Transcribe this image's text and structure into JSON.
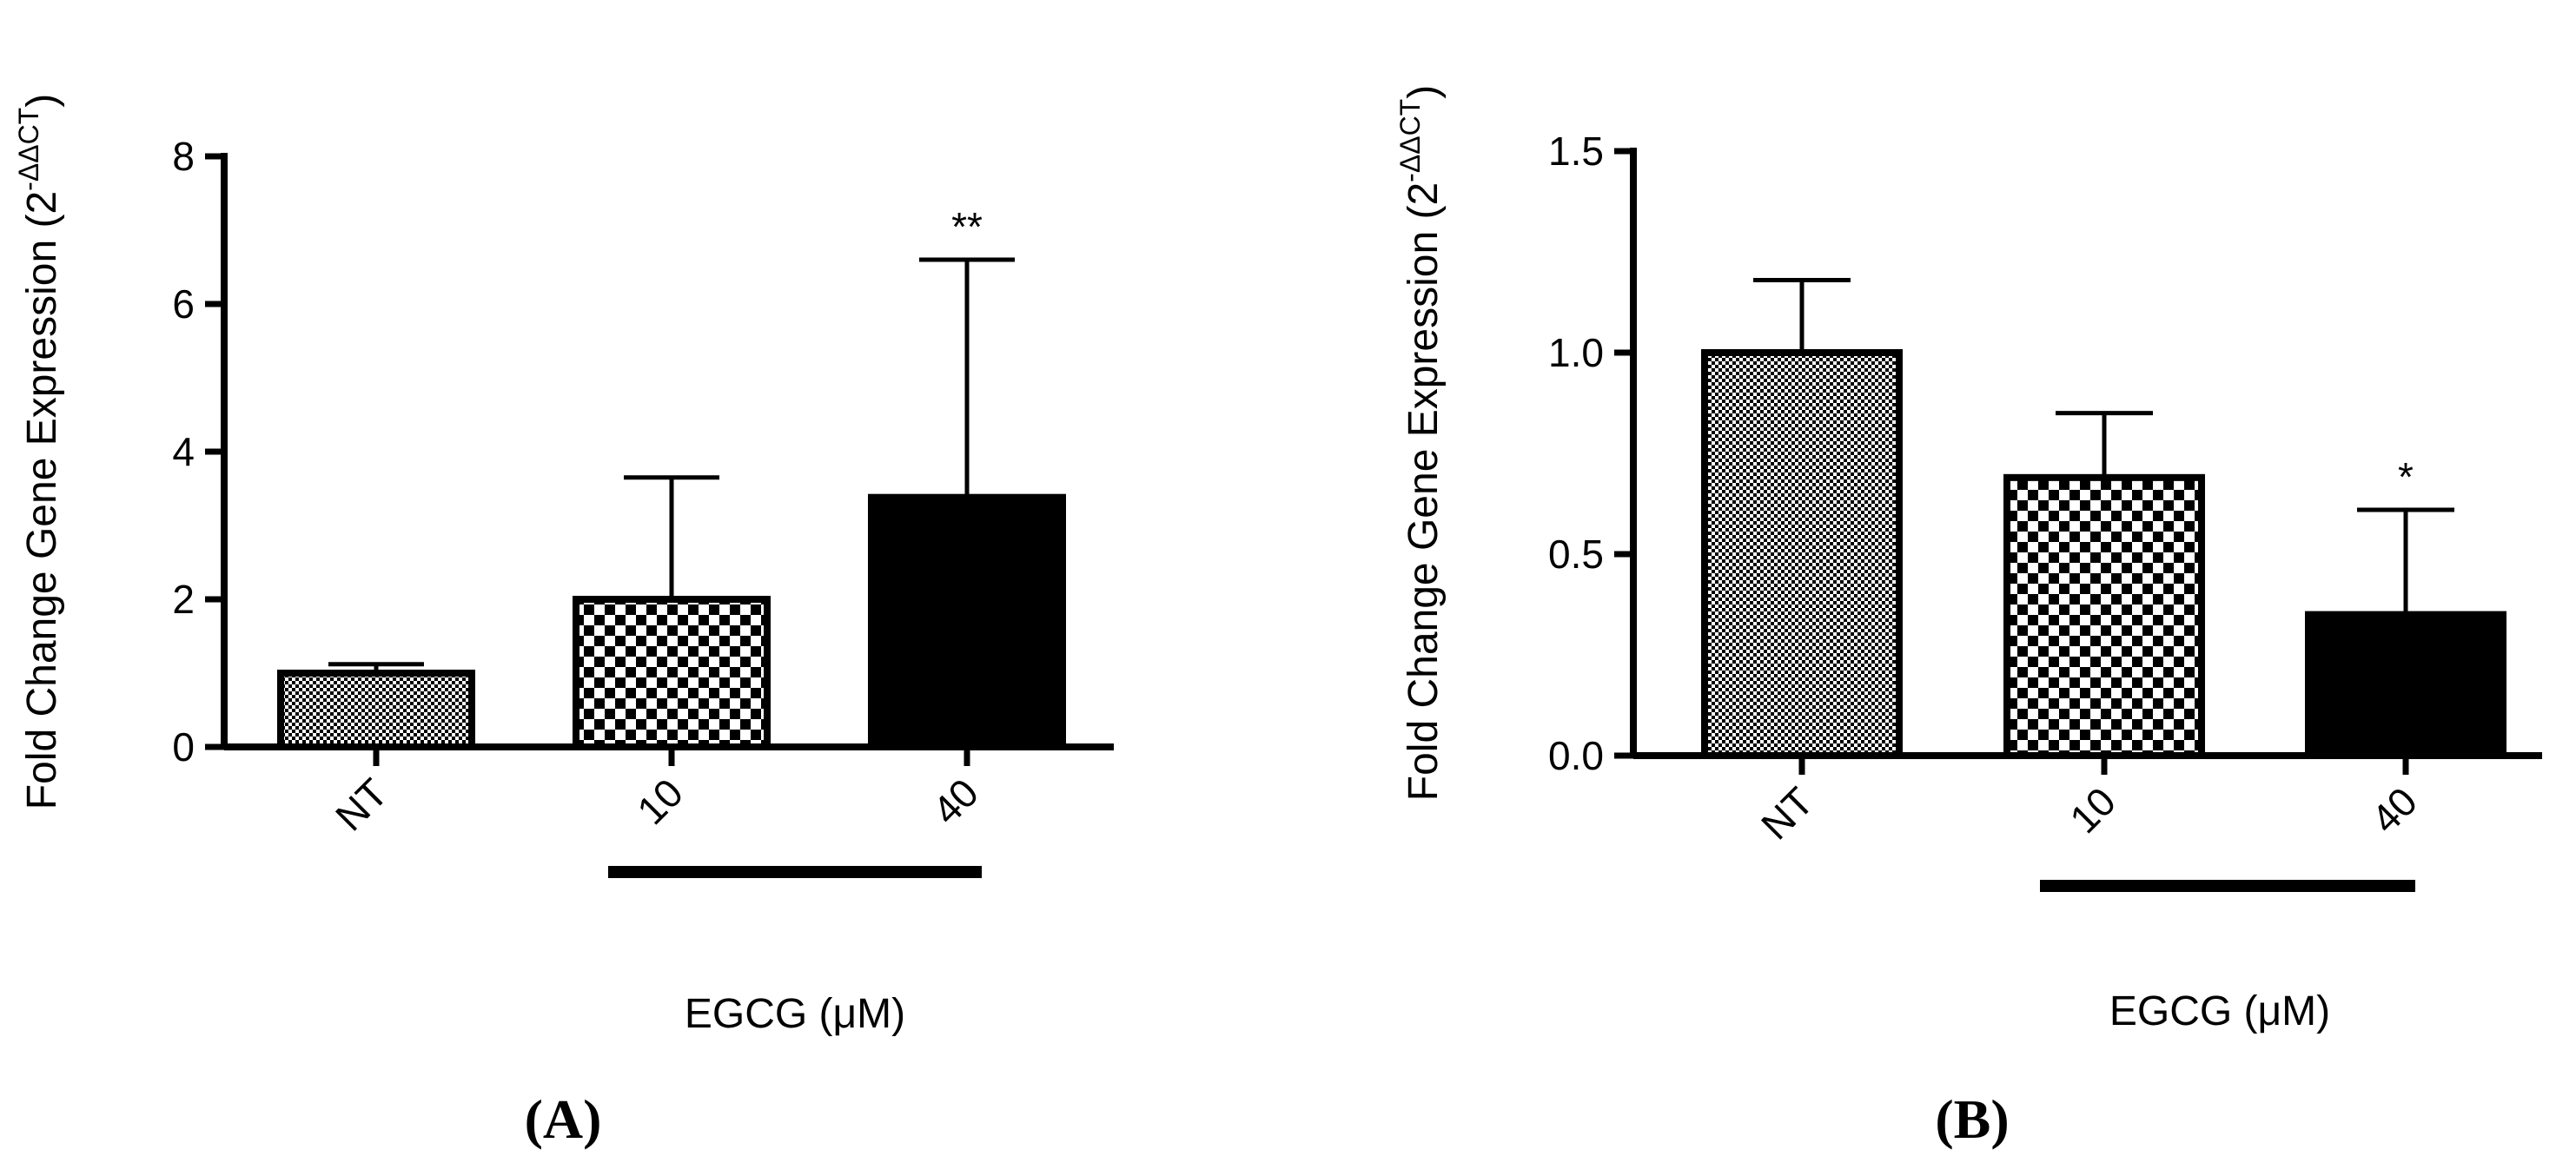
{
  "chart_data": [
    {
      "type": "bar",
      "panel_label": "(A)",
      "ylabel": "Fold Change Gene Expression (2",
      "ylabel_sup": "-ΔΔCT",
      "ylabel_close": ")",
      "xlabel": "EGCG (μM)",
      "categories": [
        "NT",
        "10",
        "40"
      ],
      "values": [
        1.0,
        2.0,
        3.38
      ],
      "errors_upper": [
        1.12,
        3.65,
        6.6
      ],
      "significance": [
        "",
        "",
        "**"
      ],
      "patterns": [
        "fine-dots",
        "checker",
        "solid"
      ],
      "ylim": [
        0,
        8
      ],
      "yticks": [
        "0",
        "2",
        "4",
        "6",
        "8"
      ],
      "grid": false
    },
    {
      "type": "bar",
      "panel_label": "(B)",
      "ylabel": "Fold Change Gene Expression (2",
      "ylabel_sup": "-ΔΔCT",
      "ylabel_close": ")",
      "xlabel": "EGCG (μM)",
      "categories": [
        "NT",
        "10",
        "40"
      ],
      "values": [
        1.0,
        0.69,
        0.35
      ],
      "errors_upper": [
        1.18,
        0.85,
        0.61
      ],
      "significance": [
        "",
        "",
        "*"
      ],
      "patterns": [
        "fine-dots",
        "checker",
        "solid"
      ],
      "ylim": [
        0,
        1.5
      ],
      "yticks": [
        "0.0",
        "0.5",
        "1.0",
        "1.5"
      ],
      "grid": false
    }
  ]
}
